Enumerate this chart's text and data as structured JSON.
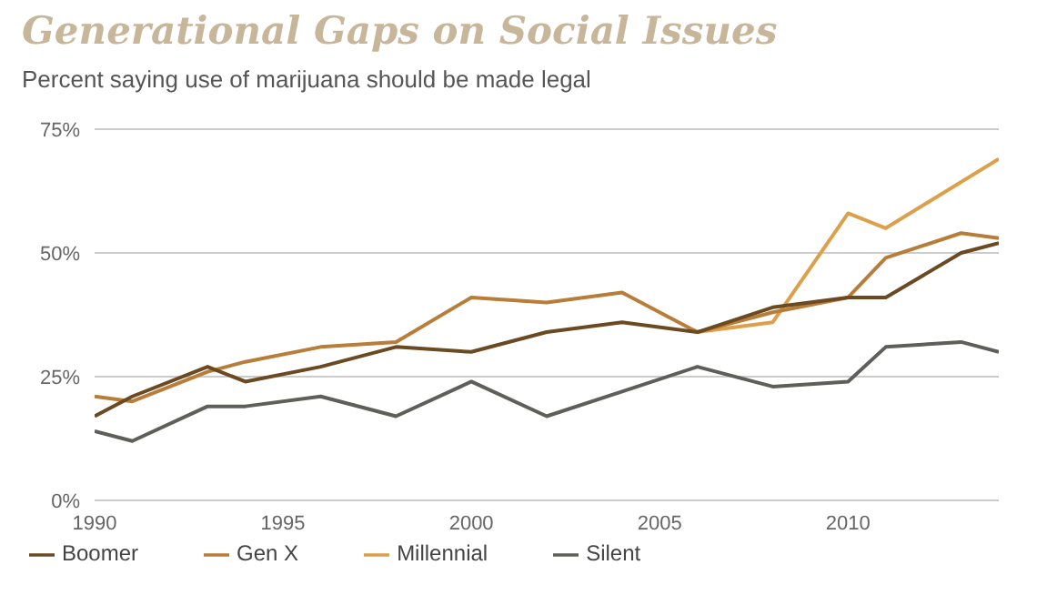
{
  "chart_data": {
    "type": "line",
    "title": "Generational Gaps on Social Issues",
    "subtitle": "Percent saying use of marijuana should be made legal",
    "xlim": [
      1990,
      2014
    ],
    "xticks": [
      1990,
      1995,
      2000,
      2005,
      2010
    ],
    "ylim": [
      0,
      75
    ],
    "yticks": [
      {
        "value": 0,
        "label": "0%"
      },
      {
        "value": 25,
        "label": "25%"
      },
      {
        "value": 50,
        "label": "50%"
      },
      {
        "value": 75,
        "label": "75%"
      }
    ],
    "grid": "y",
    "legend": "bottom",
    "marker": "none",
    "series": [
      {
        "name": "Millennial",
        "color": "#dca04a",
        "x": [
          2006,
          2008,
          2010,
          2011,
          2014
        ],
        "values": [
          34,
          36,
          58,
          55,
          69
        ]
      },
      {
        "name": "Gen X",
        "color": "#b87d38",
        "x": [
          1990,
          1991,
          1993,
          1994,
          1996,
          1998,
          2000,
          2002,
          2004,
          2006,
          2008,
          2010,
          2011,
          2013,
          2014
        ],
        "values": [
          21,
          20,
          26,
          28,
          31,
          32,
          41,
          40,
          42,
          34,
          38,
          41,
          49,
          54,
          53
        ]
      },
      {
        "name": "Boomer",
        "color": "#6b4a22",
        "x": [
          1990,
          1991,
          1993,
          1994,
          1996,
          1998,
          2000,
          2002,
          2004,
          2006,
          2008,
          2010,
          2011,
          2013,
          2014
        ],
        "values": [
          17,
          21,
          27,
          24,
          27,
          31,
          30,
          34,
          36,
          34,
          39,
          41,
          41,
          50,
          52
        ]
      },
      {
        "name": "Silent",
        "color": "#5e5e5a",
        "x": [
          1990,
          1991,
          1993,
          1994,
          1996,
          1998,
          2000,
          2002,
          2004,
          2006,
          2008,
          2010,
          2011,
          2013,
          2014
        ],
        "values": [
          14,
          12,
          19,
          19,
          21,
          17,
          24,
          17,
          22,
          27,
          23,
          24,
          31,
          32,
          30
        ]
      }
    ]
  }
}
